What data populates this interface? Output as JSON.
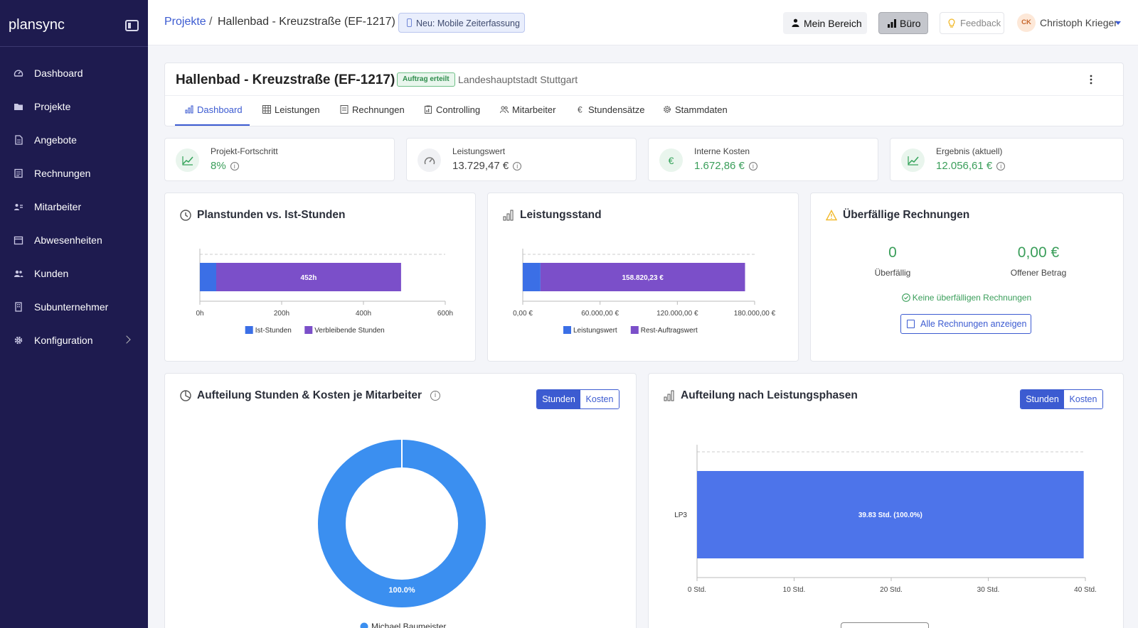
{
  "sidebar": {
    "brand": "plansync",
    "items": [
      {
        "label": "Dashboard",
        "icon": "gauge-icon"
      },
      {
        "label": "Projekte",
        "icon": "folder-icon"
      },
      {
        "label": "Angebote",
        "icon": "document-icon"
      },
      {
        "label": "Rechnungen",
        "icon": "invoice-icon"
      },
      {
        "label": "Mitarbeiter",
        "icon": "id-card-icon"
      },
      {
        "label": "Abwesenheiten",
        "icon": "calendar-icon"
      },
      {
        "label": "Kunden",
        "icon": "users-icon"
      },
      {
        "label": "Subunternehmer",
        "icon": "building-icon"
      },
      {
        "label": "Konfiguration",
        "icon": "gear-icon"
      }
    ]
  },
  "topbar": {
    "breadcrumb_root": "Projekte",
    "breadcrumb_sep": "/",
    "breadcrumb_current": "Hallenbad - Kreuzstraße (EF-1217)",
    "new_badge": "Neu: Mobile Zeiterfassung",
    "mein_bereich": "Mein Bereich",
    "buero": "Büro",
    "feedback": "Feedback",
    "avatar_initials": "CK",
    "user_name": "Christoph Krieger"
  },
  "project": {
    "title": "Hallenbad - Kreuzstraße (EF-1217)",
    "status": "Auftrag erteilt",
    "client": "Landeshauptstadt Stuttgart",
    "tabs": [
      {
        "label": "Dashboard",
        "icon": "bar-chart-icon"
      },
      {
        "label": "Leistungen",
        "icon": "table-icon"
      },
      {
        "label": "Rechnungen",
        "icon": "invoice-icon"
      },
      {
        "label": "Controlling",
        "icon": "clipboard-icon"
      },
      {
        "label": "Mitarbeiter",
        "icon": "people-icon"
      },
      {
        "label": "Stundensätze",
        "icon": "euro-icon"
      },
      {
        "label": "Stammdaten",
        "icon": "gear-icon"
      }
    ]
  },
  "kpis": [
    {
      "label": "Projekt-Fortschritt",
      "value": "8%",
      "icon": "trend-up-icon"
    },
    {
      "label": "Leistungswert",
      "value": "13.729,47 €",
      "icon": "speedometer-icon"
    },
    {
      "label": "Interne Kosten",
      "value": "1.672,86 €",
      "icon": "euro-icon"
    },
    {
      "label": "Ergebnis (aktuell)",
      "value": "12.056,61 €",
      "icon": "trend-up-icon"
    }
  ],
  "colors": {
    "sidebar": "#1e1b4f",
    "accent": "#3c5bd1",
    "positive": "#3a9e5a",
    "ist": "#3b6fe6",
    "remaining": "#7b4fc9",
    "donut": "#3b8ff0",
    "phase_bar": "#4d74ea"
  },
  "overdue": {
    "title": "Überfällige Rechnungen",
    "count": "0",
    "count_label": "Überfällig",
    "amount": "0,00 €",
    "amount_label": "Offener Betrag",
    "ok_message": "Keine überfälligen Rechnungen",
    "button": "Alle Rechnungen anzeigen"
  },
  "employee_split": {
    "title": "Aufteilung Stunden & Kosten je Mitarbeiter",
    "toggle_on": "Stunden",
    "toggle_off": "Kosten"
  },
  "phase_split": {
    "title": "Aufteilung nach Leistungsphasen",
    "toggle_on": "Stunden",
    "toggle_off": "Kosten"
  },
  "chart_data": [
    {
      "type": "bar",
      "orientation": "horizontal",
      "stacked": true,
      "title": "Planstunden vs. Ist-Stunden",
      "series": [
        {
          "name": "Ist-Stunden",
          "values": [
            40
          ]
        },
        {
          "name": "Verbleibende Stunden",
          "values": [
            452
          ]
        }
      ],
      "data_label": "452h",
      "xlim": [
        0,
        600
      ],
      "ticks": [
        "0h",
        "200h",
        "400h",
        "600h"
      ],
      "legend": "bottom"
    },
    {
      "type": "bar",
      "orientation": "horizontal",
      "stacked": true,
      "title": "Leistungsstand",
      "series": [
        {
          "name": "Leistungswert",
          "values": [
            13729.47
          ]
        },
        {
          "name": "Rest-Auftragswert",
          "values": [
            158820.23
          ]
        }
      ],
      "data_label": "158.820,23 €",
      "xlim": [
        0,
        180000
      ],
      "ticks": [
        "0,00 €",
        "60.000,00 €",
        "120.000,00 €",
        "180.000,00 €"
      ],
      "legend": "bottom"
    },
    {
      "type": "pie",
      "donut": true,
      "title": "Aufteilung Stunden & Kosten je Mitarbeiter",
      "labels": [
        "Michael Baumeister"
      ],
      "values": [
        100
      ],
      "data_label": "100.0%",
      "legend": "bottom"
    },
    {
      "type": "bar",
      "orientation": "horizontal",
      "title": "Aufteilung nach Leistungsphasen",
      "categories": [
        "LP3"
      ],
      "values": [
        39.83
      ],
      "data_label": "39.83 Std. (100.0%)",
      "xlim": [
        0,
        40
      ],
      "ticks": [
        "0 Std.",
        "10 Std.",
        "20 Std.",
        "30 Std.",
        "40 Std."
      ]
    }
  ]
}
